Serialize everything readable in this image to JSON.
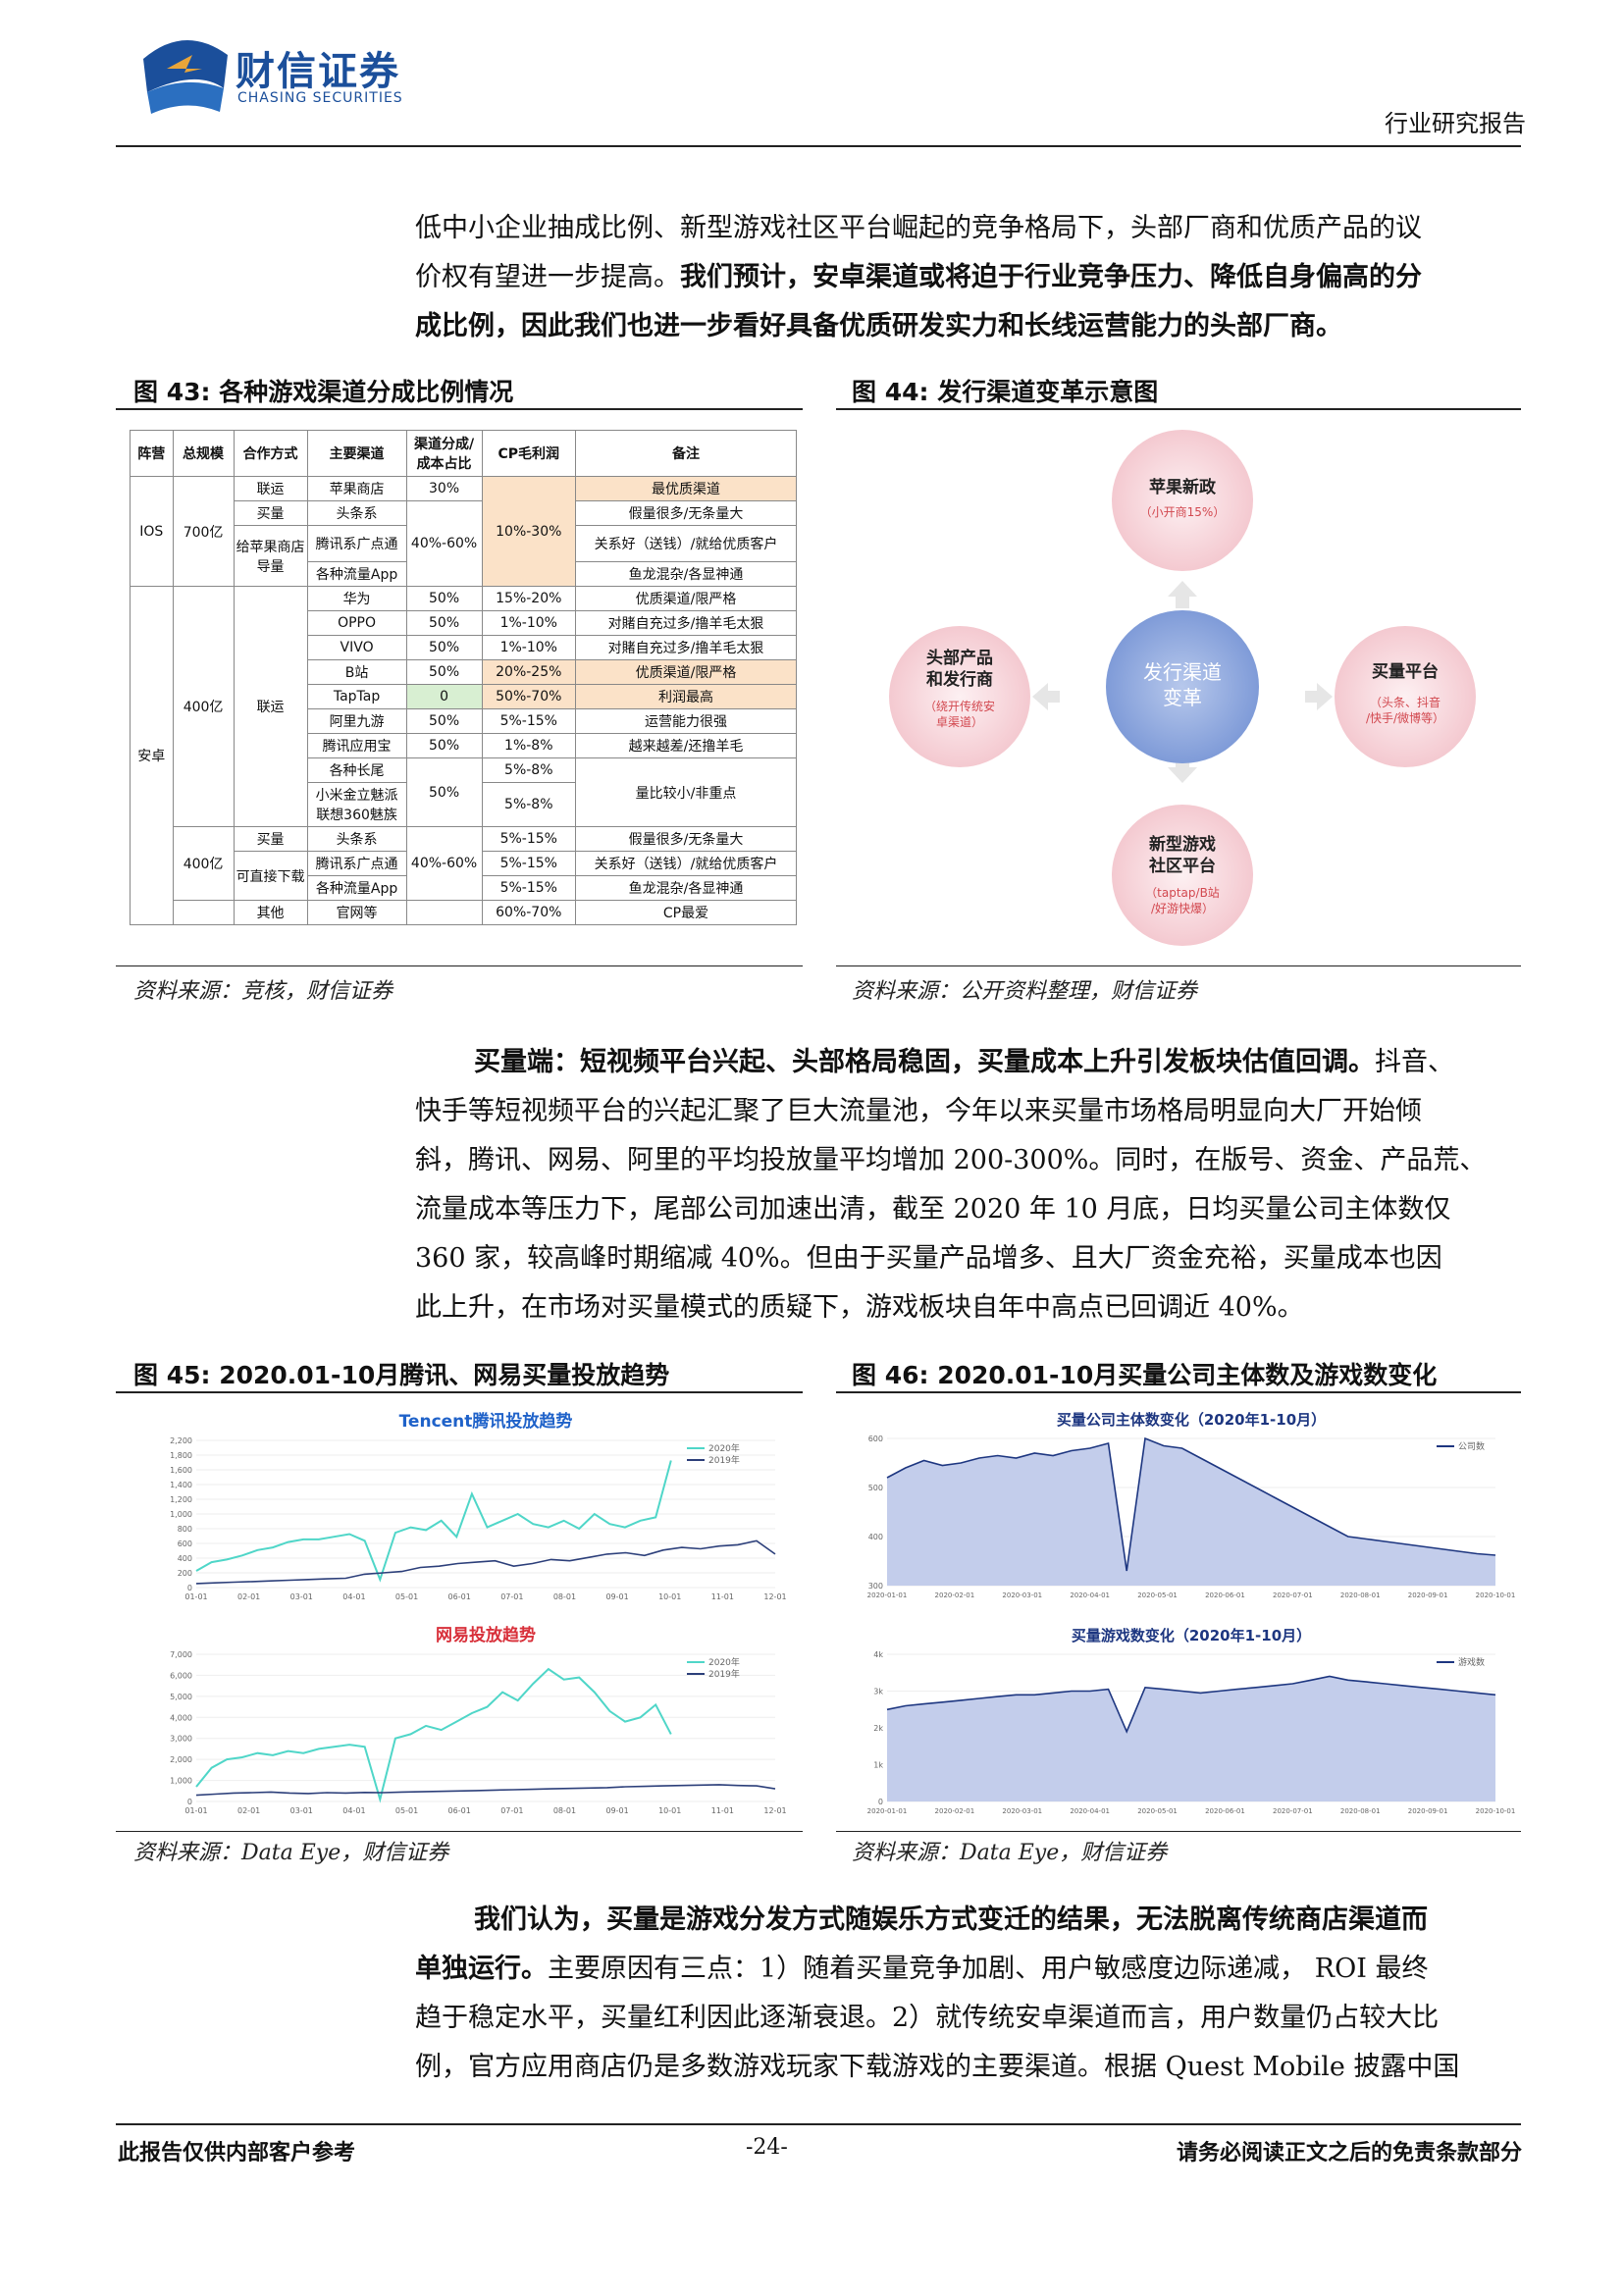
{
  "header": {
    "logo_cn": "财信证券",
    "logo_en": "CHASING SECURITIES",
    "report_type": "行业研究报告"
  },
  "para1": {
    "line1": "低中小企业抽成比例、新型游戏社区平台崛起的竞争格局下，头部厂商和优质产品的议",
    "line2a": "价权有望进一步提高。",
    "line2b": "我们预计，安卓渠道或将迫于行业竞争压力、降低自身偏高的分",
    "line3": "成比例，因此我们也进一步看好具备优质研发实力和长线运营能力的头部厂商。"
  },
  "fig43": {
    "title": "图 43:  各种游戏渠道分成比例情况",
    "source": "资料来源：竞核，财信证券",
    "headers": [
      "阵营",
      "总规模",
      "合作方式",
      "主要渠道",
      "渠道分成/成本占比",
      "CP毛利润",
      "备注"
    ],
    "ios": {
      "camp": "IOS",
      "scale": "700亿",
      "cp": "10%-30%",
      "rows": [
        {
          "coop": "联运",
          "channel": "苹果商店",
          "share": "30%",
          "note": "最优质渠道"
        },
        {
          "coop": "买量",
          "channel": "头条系",
          "share": "40%-60%",
          "note": "假量很多/无条量大"
        },
        {
          "coop": "给苹果商店导量",
          "channel": "腾讯系广点通",
          "note": "关系好（送钱）/就给优质客户"
        },
        {
          "channel": "各种流量App",
          "note": "鱼龙混杂/各显神通"
        }
      ]
    },
    "android": {
      "camp": "安卓",
      "scale1": "400亿",
      "coop1": "联运",
      "rows1": [
        {
          "channel": "华为",
          "share": "50%",
          "cp": "15%-20%",
          "note": "优质渠道/限严格"
        },
        {
          "channel": "OPPO",
          "share": "50%",
          "cp": "1%-10%",
          "note": "对賭自充过多/撸羊毛太狠"
        },
        {
          "channel": "VIVO",
          "share": "50%",
          "cp": "1%-10%",
          "note": "对賭自充过多/撸羊毛太狠"
        },
        {
          "channel": "B站",
          "share": "50%",
          "cp": "20%-25%",
          "note": "优质渠道/限严格"
        },
        {
          "channel": "TapTap",
          "share": "0",
          "cp": "50%-70%",
          "note": "利润最高"
        },
        {
          "channel": "阿里九游",
          "share": "50%",
          "cp": "5%-15%",
          "note": "运营能力很强"
        },
        {
          "channel": "腾讯应用宝",
          "share": "50%",
          "cp": "1%-8%",
          "note": "越来越差/还撸羊毛"
        },
        {
          "channel": "各种长尾",
          "cp": "5%-8%"
        },
        {
          "channel": "小米金立魅派联想360魅族",
          "share": "50%",
          "note": "量比较小/非重点"
        }
      ],
      "scale2": "400亿",
      "rows2": [
        {
          "coop": "买量",
          "channel": "头条系",
          "share": "40%-60%",
          "cp": "5%-15%",
          "note": "假量很多/无条量大"
        },
        {
          "coop": "可直接下载",
          "channel": "腾讯系广点通",
          "cp": "5%-15%",
          "note": "关系好（送钱）/就给优质客户"
        },
        {
          "channel": "各种流量App",
          "cp": "5%-15%",
          "note": "鱼龙混杂/各显神通"
        },
        {
          "coop": "其他",
          "channel": "官网等",
          "cp": "60%-70%",
          "note": "CP最爱"
        }
      ]
    }
  },
  "fig44": {
    "title": "图 44:  发行渠道变革示意图",
    "source": "资料来源：公开资料整理，财信证券",
    "center": [
      "发行渠道",
      "变革"
    ],
    "top": {
      "title": "苹果新政",
      "sub": "（小开商15%）"
    },
    "left": {
      "title": [
        "头部产品",
        "和发行商"
      ],
      "sub": [
        "（绕开传统安",
        "卓渠道）"
      ]
    },
    "right": {
      "title": "买量平台",
      "sub": [
        "（头条、抖音",
        "/快手/微博等）"
      ]
    },
    "bottom": {
      "title": [
        "新型游戏",
        "社区平台"
      ],
      "sub": [
        "（taptap/B站",
        "/好游快爆）"
      ]
    }
  },
  "para2": {
    "bold": "买量端：短视频平台兴起、头部格局稳固，买量成本上升引发板块估值回调。",
    "l1": "抖音、",
    "l2": "快手等短视频平台的兴起汇聚了巨大流量池，今年以来买量市场格局明显向大厂开始倾",
    "l3": "斜，腾讯、网易、阿里的平均投放量平均增加 200-300%。同时，在版号、资金、产品荒、",
    "l4": "流量成本等压力下，尾部公司加速出清，截至 2020 年 10 月底，日均买量公司主体数仅",
    "l5": "360 家，较高峰时期缩减 40%。但由于买量产品增多、且大厂资金充裕，买量成本也因",
    "l6": "此上升，在市场对买量模式的质疑下，游戏板块自年中高点已回调近 40%。"
  },
  "fig45": {
    "title": "图 45:  2020.01-10月腾讯、网易买量投放趋势",
    "source": "资料来源：Data Eye，财信证券",
    "chart_data": [
      {
        "type": "line",
        "title": "Tencent腾讯投放趋势",
        "legend": [
          "2020年",
          "2019年"
        ],
        "yticks": [
          "2,200",
          "1,800",
          "1,600",
          "1,400",
          "1,200",
          "1,000",
          "800",
          "600",
          "400",
          "200",
          "0"
        ],
        "xticks": [
          "01-01",
          "02-01",
          "03-01",
          "04-01",
          "05-01",
          "06-01",
          "07-01",
          "08-01",
          "09-01",
          "10-01",
          "11-01",
          "12-01"
        ],
        "ylim": [
          0,
          2200
        ],
        "series": [
          {
            "name": "2020年",
            "values": [
              250,
              380,
              420,
              480,
              560,
              600,
              680,
              720,
              720,
              760,
              800,
              700,
              120,
              820,
              900,
              860,
              1000,
              760,
              1400,
              900,
              1000,
              1100,
              950,
              900,
              1000,
              880,
              1100,
              950,
              900,
              1000,
              1050,
              1900
            ]
          },
          {
            "name": "2019年",
            "values": [
              60,
              70,
              80,
              90,
              100,
              110,
              120,
              130,
              140,
              200,
              220,
              240,
              300,
              320,
              360,
              380,
              400,
              320,
              360,
              420,
              400,
              450,
              500,
              520,
              480,
              560,
              600,
              580,
              620,
              640,
              700,
              500
            ]
          }
        ]
      },
      {
        "type": "line",
        "title": "网易投放趋势",
        "legend": [
          "2020年",
          "2019年"
        ],
        "yticks": [
          "7,000",
          "6,000",
          "5,000",
          "4,000",
          "3,000",
          "2,000",
          "1,000",
          "0"
        ],
        "xticks": [
          "01-01",
          "02-01",
          "03-01",
          "04-01",
          "05-01",
          "06-01",
          "07-01",
          "08-01",
          "09-01",
          "10-01",
          "11-01",
          "12-01"
        ],
        "ylim": [
          0,
          7000
        ],
        "series": [
          {
            "name": "2020年",
            "values": [
              700,
              1600,
              2000,
              2100,
              2300,
              2200,
              2400,
              2300,
              2500,
              2600,
              2700,
              2600,
              100,
              3000,
              3200,
              3600,
              3400,
              3800,
              4200,
              4500,
              5200,
              4800,
              5600,
              6300,
              5800,
              5900,
              5200,
              4300,
              3800,
              4000,
              4600,
              3200
            ]
          },
          {
            "name": "2019年",
            "values": [
              300,
              350,
              400,
              420,
              450,
              400,
              380,
              420,
              400,
              430,
              420,
              450,
              460,
              480,
              500,
              520,
              540,
              560,
              580,
              600,
              620,
              640,
              660,
              700,
              720,
              740,
              760,
              780,
              800,
              760,
              740,
              600
            ]
          }
        ]
      }
    ]
  },
  "fig46": {
    "title": "图 46:  2020.01-10月买量公司主体数及游戏数变化",
    "source": "资料来源：Data Eye，财信证券",
    "chart_data": [
      {
        "type": "area",
        "title": "买量公司主体数变化（2020年1-10月）",
        "legend": [
          "公司数"
        ],
        "yticks": [
          "600",
          "500",
          "400",
          "300"
        ],
        "ylim": [
          300,
          600
        ],
        "xticks": [
          "2020-01-01",
          "2020-02-01",
          "2020-03-01",
          "2020-04-01",
          "2020-05-01",
          "2020-06-01",
          "2020-07-01",
          "2020-08-01",
          "2020-09-01",
          "2020-10-01"
        ],
        "values": [
          520,
          540,
          555,
          545,
          550,
          560,
          565,
          560,
          570,
          565,
          575,
          580,
          590,
          330,
          600,
          585,
          580,
          560,
          540,
          520,
          500,
          480,
          460,
          440,
          420,
          400,
          395,
          390,
          385,
          380,
          375,
          370,
          365,
          362
        ]
      },
      {
        "type": "area",
        "title": "买量游戏数变化（2020年1-10月）",
        "legend": [
          "游戏数"
        ],
        "yticks": [
          "4k",
          "3k",
          "2k",
          "1k",
          "0"
        ],
        "ylim": [
          0,
          4000
        ],
        "xticks": [
          "2020-01-01",
          "2020-02-01",
          "2020-03-01",
          "2020-04-01",
          "2020-05-01",
          "2020-06-01",
          "2020-07-01",
          "2020-08-01",
          "2020-09-01",
          "2020-10-01"
        ],
        "values": [
          2500,
          2600,
          2650,
          2700,
          2750,
          2800,
          2850,
          2900,
          2900,
          2950,
          3000,
          3000,
          3050,
          1900,
          3100,
          3050,
          3000,
          2950,
          3000,
          3050,
          3100,
          3150,
          3200,
          3300,
          3400,
          3300,
          3250,
          3200,
          3150,
          3100,
          3050,
          3000,
          2950,
          2900
        ]
      }
    ]
  },
  "para3": {
    "bold1": "我们认为，买量是游戏分发方式随娱乐方式变迁的结果，无法脱离传统商店渠道而",
    "bold2": "单独运行。",
    "l2": "主要原因有三点：1）随着买量竞争加剧、用户敏感度边际递减， ROI 最终",
    "l3": "趋于稳定水平，买量红利因此逐渐衰退。2）就传统安卓渠道而言，用户数量仍占较大比",
    "l4": "例，官方应用商店仍是多数游戏玩家下载游戏的主要渠道。根据 Quest Mobile 披露中国"
  },
  "footer": {
    "left": "此报告仅供内部客户参考",
    "page": "-24-",
    "right": "请务必阅读正文之后的免责条款部分"
  }
}
